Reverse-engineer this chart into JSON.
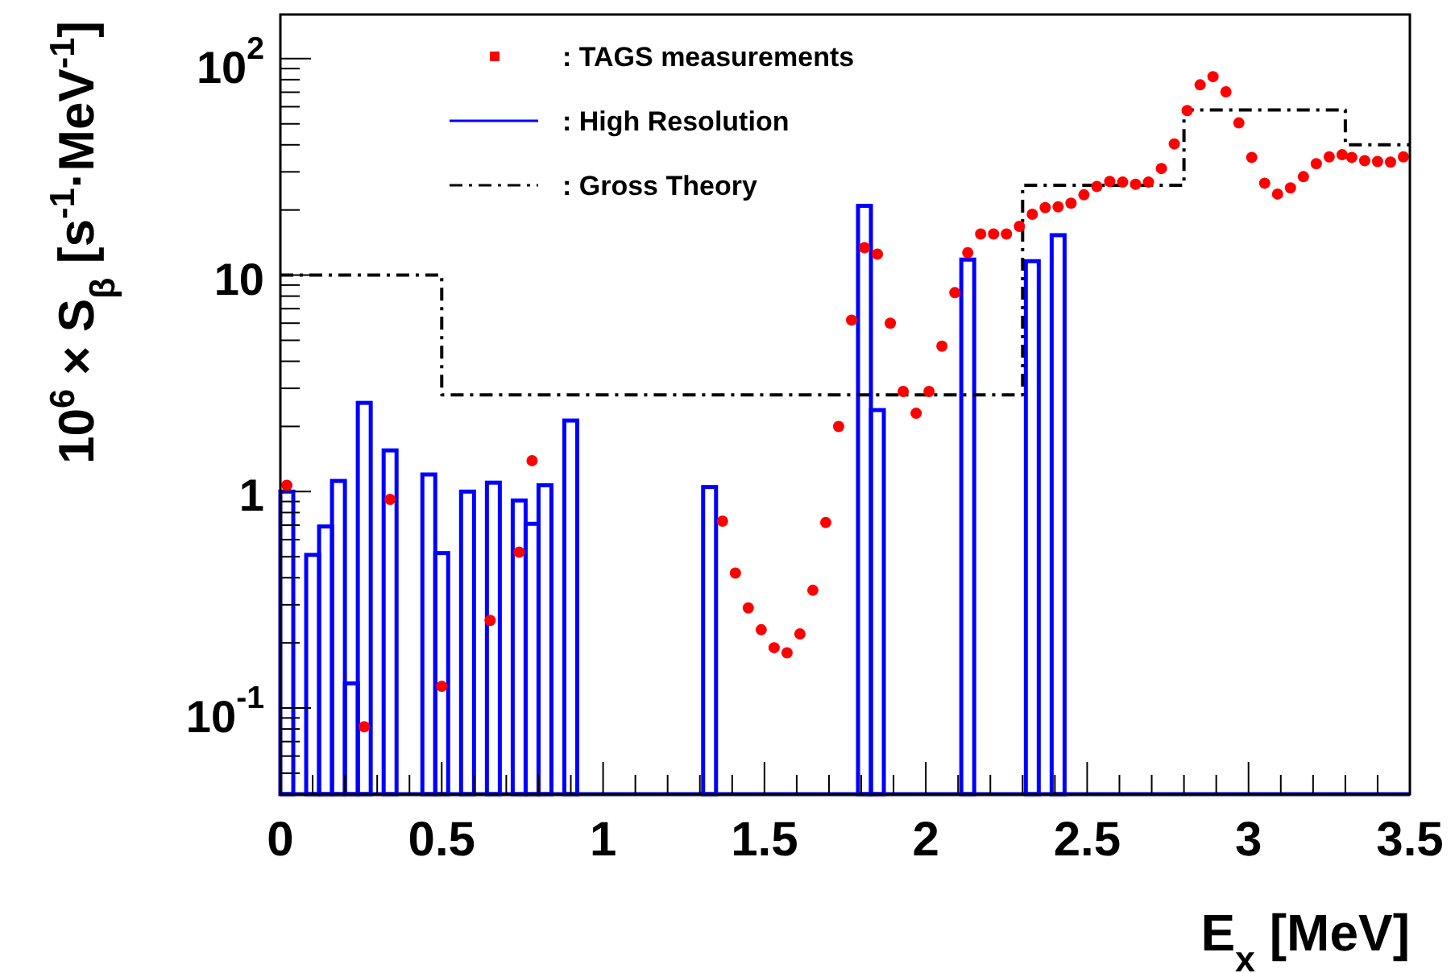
{
  "chart_data": {
    "type": "scatter",
    "xlabel": "E$_{x}$ [MeV]",
    "ylabel": "10$^{6}$ × S$_{β}$ [s$^{-1}$·MeV$^{-1}$]",
    "log": "y",
    "legend": "top left",
    "grid": false,
    "xlim": [
      0,
      3.5
    ],
    "ylim": [
      0.04,
      160
    ],
    "xticks": [
      0,
      {
        "value": 0.1,
        "label": null
      },
      {
        "value": 0.2,
        "label": null
      },
      {
        "value": 0.3,
        "label": null
      },
      {
        "value": 0.4,
        "label": null
      },
      0.5,
      {
        "value": 0.6,
        "label": null
      },
      {
        "value": 0.7,
        "label": null
      },
      {
        "value": 0.8,
        "label": null
      },
      {
        "value": 0.9,
        "label": null
      },
      1,
      {
        "value": 1.1,
        "label": null
      },
      {
        "value": 1.2,
        "label": null
      },
      {
        "value": 1.3,
        "label": null
      },
      {
        "value": 1.4,
        "label": null
      },
      1.5,
      {
        "value": 1.6,
        "label": null
      },
      {
        "value": 1.7,
        "label": null
      },
      {
        "value": 1.8,
        "label": null
      },
      {
        "value": 1.9,
        "label": null
      },
      2,
      {
        "value": 2.1,
        "label": null
      },
      {
        "value": 2.2,
        "label": null
      },
      {
        "value": 2.3,
        "label": null
      },
      {
        "value": 2.4,
        "label": null
      },
      2.5,
      {
        "value": 2.6,
        "label": null
      },
      {
        "value": 2.7,
        "label": null
      },
      {
        "value": 2.8,
        "label": null
      },
      {
        "value": 2.9,
        "label": null
      },
      3,
      {
        "value": 3.1,
        "label": null
      },
      {
        "value": 3.2,
        "label": null
      },
      {
        "value": 3.3,
        "label": null
      },
      {
        "value": 3.4,
        "label": null
      },
      3.5
    ],
    "yticks": [
      {
        "value": 0.05,
        "label": null
      },
      {
        "value": 0.06,
        "label": null
      },
      {
        "value": 0.07,
        "label": null
      },
      {
        "value": 0.08,
        "label": null
      },
      {
        "value": 0.09,
        "label": null
      },
      {
        "value": 0.1,
        "label": "10$^{-1}$"
      },
      {
        "value": 0.2,
        "label": null
      },
      {
        "value": 0.3,
        "label": null
      },
      {
        "value": 0.4,
        "label": null
      },
      {
        "value": 0.5,
        "label": null
      },
      {
        "value": 0.6,
        "label": null
      },
      {
        "value": 0.7,
        "label": null
      },
      {
        "value": 0.8,
        "label": null
      },
      {
        "value": 0.9,
        "label": null
      },
      1,
      {
        "value": 2,
        "label": null
      },
      {
        "value": 3,
        "label": null
      },
      {
        "value": 4,
        "label": null
      },
      {
        "value": 5,
        "label": null
      },
      {
        "value": 6,
        "label": null
      },
      {
        "value": 7,
        "label": null
      },
      {
        "value": 8,
        "label": null
      },
      {
        "value": 9,
        "label": null
      },
      10,
      {
        "value": 20,
        "label": null
      },
      {
        "value": 30,
        "label": null
      },
      {
        "value": 40,
        "label": null
      },
      {
        "value": 50,
        "label": null
      },
      {
        "value": 60,
        "label": null
      },
      {
        "value": 70,
        "label": null
      },
      {
        "value": 80,
        "label": null
      },
      {
        "value": 90,
        "label": null
      },
      {
        "value": 100,
        "label": "10$^{2}$"
      }
    ],
    "series": [
      {
        "name": ": TAGS measurements",
        "type": "scatter",
        "color": "#ff0000",
        "marker": "circle",
        "x": [
          0.02,
          0.26,
          0.34,
          0.5,
          0.65,
          0.74,
          0.78,
          1.37,
          1.41,
          1.45,
          1.49,
          1.53,
          1.57,
          1.61,
          1.65,
          1.69,
          1.73,
          1.77,
          1.81,
          1.85,
          1.89,
          1.93,
          1.97,
          2.01,
          2.05,
          2.09,
          2.13,
          2.17,
          2.21,
          2.25,
          2.29,
          2.33,
          2.37,
          2.41,
          2.45,
          2.49,
          2.53,
          2.57,
          2.61,
          2.65,
          2.69,
          2.73,
          2.77,
          2.81,
          2.85,
          2.89,
          2.93,
          2.97,
          3.01,
          3.05,
          3.09,
          3.13,
          3.17,
          3.21,
          3.25,
          3.29,
          3.32,
          3.36,
          3.4,
          3.44,
          3.48
        ],
        "values": [
          1.07,
          0.082,
          0.92,
          0.126,
          0.254,
          0.525,
          1.39,
          0.73,
          0.42,
          0.29,
          0.23,
          0.19,
          0.18,
          0.22,
          0.35,
          0.72,
          2.0,
          6.2,
          13.4,
          12.5,
          6.0,
          2.9,
          2.3,
          2.9,
          4.7,
          8.3,
          12.7,
          15.5,
          15.5,
          15.5,
          16.8,
          19.1,
          20.5,
          20.7,
          21.5,
          23.5,
          25.7,
          27.1,
          26.9,
          26.3,
          26.9,
          31.1,
          40.4,
          57.6,
          75.7,
          82.6,
          70.3,
          50.5,
          35,
          26.6,
          23.7,
          25.3,
          28.5,
          32.7,
          35.2,
          36,
          35,
          33.8,
          33.5,
          33.3,
          35.2
        ]
      },
      {
        "name": ": High Resolution",
        "type": "histogram",
        "color": "#0000ff",
        "line_style": "solid",
        "bins": [
          0,
          0.04,
          0.08,
          0.12,
          0.16,
          0.2,
          0.24,
          0.28,
          0.32,
          0.36,
          0.44,
          0.48,
          0.52,
          0.56,
          0.6,
          0.64,
          0.68,
          0.72,
          0.76,
          0.8,
          0.84,
          0.88,
          0.92,
          1.31,
          1.35,
          1.79,
          1.83,
          1.87,
          2.11,
          2.15,
          2.31,
          2.35,
          2.39,
          2.43
        ],
        "values": [
          1.0,
          null,
          0.51,
          0.69,
          1.12,
          0.13,
          2.57,
          null,
          1.55,
          null,
          1.2,
          0.52,
          null,
          1.0,
          null,
          1.1,
          null,
          0.91,
          0.71,
          1.07,
          null,
          2.13,
          null,
          1.05,
          null,
          20.9,
          2.38,
          null,
          11.8,
          null,
          11.6,
          null,
          15.3
        ]
      },
      {
        "name": ": Gross Theory",
        "type": "step",
        "color": "#000000",
        "line_style": "dashed",
        "x": [
          0,
          0.5,
          2.3,
          2.8,
          3.3,
          3.5
        ],
        "values": [
          10,
          2.8,
          26,
          58,
          40,
          40
        ]
      }
    ]
  }
}
